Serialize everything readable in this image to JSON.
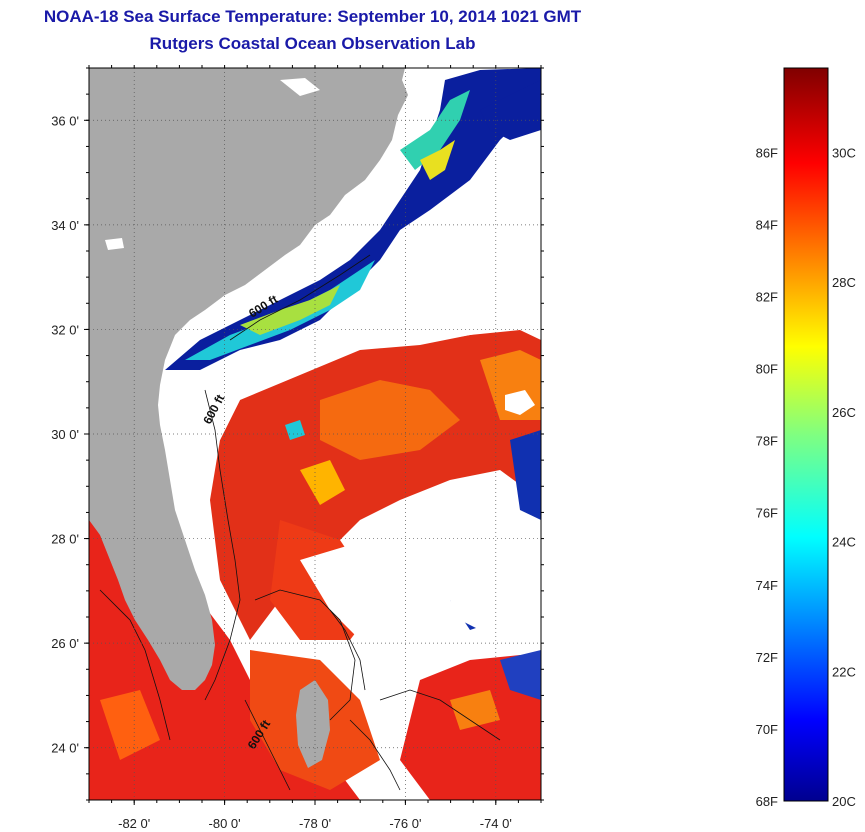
{
  "title": "NOAA-18 Sea Surface Temperature:  September 10, 2014 1021 GMT",
  "subtitle": "Rutgers Coastal Ocean Observation Lab",
  "map": {
    "lon_range": [
      -83,
      -73
    ],
    "lat_range": [
      23,
      37
    ],
    "lat_ticks": [
      {
        "value": 24,
        "label": "24 0'"
      },
      {
        "value": 26,
        "label": "26 0'"
      },
      {
        "value": 28,
        "label": "28 0'"
      },
      {
        "value": 30,
        "label": "30 0'"
      },
      {
        "value": 32,
        "label": "32 0'"
      },
      {
        "value": 34,
        "label": "34 0'"
      },
      {
        "value": 36,
        "label": "36 0'"
      }
    ],
    "lon_ticks": [
      {
        "value": -82,
        "label": "-82 0'"
      },
      {
        "value": -80,
        "label": "-80 0'"
      },
      {
        "value": -78,
        "label": "-78 0'"
      },
      {
        "value": -76,
        "label": "-76 0'"
      },
      {
        "value": -74,
        "label": "-74 0'"
      }
    ],
    "isobath_labels": [
      "600 ft",
      "600 ft",
      "600 ft"
    ],
    "colors": {
      "land": "#a9a9a9",
      "cloud": "#ffffff",
      "warm": "#e8241a",
      "cool": "#0a1f9e"
    }
  },
  "colorbar": {
    "range_c": [
      20,
      31.3
    ],
    "fahrenheit_labels": [
      "68F",
      "70F",
      "72F",
      "74F",
      "76F",
      "78F",
      "80F",
      "82F",
      "84F",
      "86F"
    ],
    "celsius_labels": [
      "20C",
      "22C",
      "24C",
      "26C",
      "28C",
      "30C"
    ]
  }
}
